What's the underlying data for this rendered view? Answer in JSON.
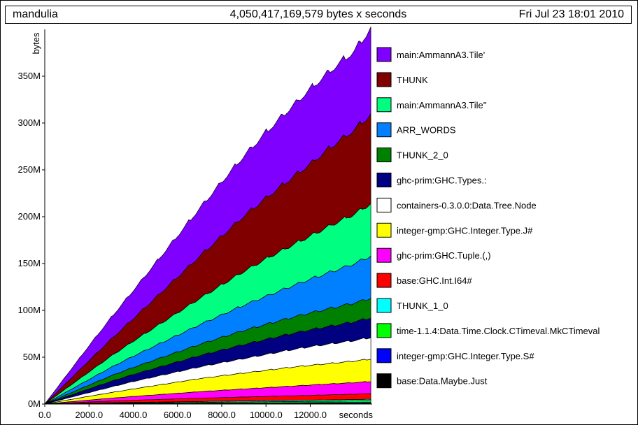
{
  "header": {
    "job": "mandulia",
    "total": "4,050,417,169,579 bytes x seconds",
    "date": "Fri Jul 23 18:01 2010"
  },
  "chart_data": {
    "type": "area",
    "stacked": true,
    "xlabel": "seconds",
    "ylabel": "bytes",
    "xlim": [
      0,
      14800
    ],
    "ylim": [
      0,
      400000000
    ],
    "x_ticks": [
      0,
      2000,
      4000,
      6000,
      8000,
      10000,
      12000
    ],
    "x_tick_labels": [
      "0.0",
      "2000.0",
      "4000.0",
      "6000.0",
      "8000.0",
      "10000.0",
      "12000.0"
    ],
    "y_ticks": [
      0,
      50000000,
      100000000,
      150000000,
      200000000,
      250000000,
      300000000,
      350000000
    ],
    "y_tick_labels": [
      "0M",
      "50M",
      "100M",
      "150M",
      "200M",
      "250M",
      "300M",
      "350M"
    ],
    "legend_position": "right",
    "x": [
      0,
      1000,
      2000,
      3000,
      4000,
      5000,
      6000,
      7000,
      8000,
      9000,
      10000,
      11000,
      12000,
      13000,
      14000,
      14740
    ],
    "series": [
      {
        "name": "base:Data.Maybe.Just",
        "color": "#000000",
        "values": [
          0,
          100000,
          200000,
          300000,
          400000,
          450000,
          500000,
          550000,
          600000,
          650000,
          700000,
          750000,
          800000,
          850000,
          900000,
          950000
        ]
      },
      {
        "name": "integer-gmp:GHC.Integer.Type.S#",
        "color": "#0000ff",
        "values": [
          0,
          80000,
          160000,
          240000,
          300000,
          350000,
          400000,
          450000,
          500000,
          550000,
          600000,
          650000,
          700000,
          750000,
          800000,
          850000
        ]
      },
      {
        "name": "time-1.1.4:Data.Time.Clock.CTimeval.MkCTimeval",
        "color": "#00ff00",
        "values": [
          0,
          150000,
          300000,
          450000,
          550000,
          650000,
          750000,
          850000,
          950000,
          1050000,
          1150000,
          1250000,
          1350000,
          1450000,
          1550000,
          1650000
        ]
      },
      {
        "name": "THUNK_1_0",
        "color": "#00ffff",
        "values": [
          0,
          150000,
          300000,
          450000,
          550000,
          650000,
          750000,
          850000,
          950000,
          1050000,
          1150000,
          1250000,
          1350000,
          1450000,
          1550000,
          1650000
        ]
      },
      {
        "name": "base:GHC.Int.I64#",
        "color": "#ff0000",
        "values": [
          0,
          700000,
          1300000,
          1800000,
          2300000,
          2700000,
          3100000,
          3500000,
          3900000,
          4200000,
          4500000,
          4800000,
          5100000,
          5400000,
          5700000,
          6000000
        ]
      },
      {
        "name": "ghc-prim:GHC.Tuple.(,)",
        "color": "#ff00ff",
        "values": [
          0,
          1000000,
          2000000,
          3000000,
          4000000,
          5000000,
          6000000,
          7000000,
          7800000,
          8600000,
          9400000,
          10200000,
          11000000,
          11700000,
          12400000,
          13000000
        ]
      },
      {
        "name": "integer-gmp:GHC.Integer.Type.J#",
        "color": "#ffff00",
        "values": [
          0,
          2000000,
          4000000,
          6000000,
          8000000,
          10000000,
          12000000,
          14000000,
          15500000,
          17000000,
          18500000,
          20000000,
          21000000,
          22000000,
          23000000,
          24000000
        ]
      },
      {
        "name": "containers-0.3.0.0:Data.Tree.Node",
        "color": "#ffffff",
        "values": [
          0,
          2000000,
          4000000,
          6000000,
          8000000,
          9500000,
          11000000,
          12500000,
          14000000,
          15500000,
          17000000,
          18500000,
          20000000,
          21000000,
          22000000,
          23000000
        ]
      },
      {
        "name": "ghc-prim:GHC.Types.:",
        "color": "#000080",
        "values": [
          0,
          2000000,
          4000000,
          6000000,
          7500000,
          9000000,
          10500000,
          12000000,
          13500000,
          15000000,
          16000000,
          17000000,
          18000000,
          19000000,
          20000000,
          21000000
        ]
      },
      {
        "name": "THUNK_2_0",
        "color": "#008000",
        "values": [
          0,
          2000000,
          4000000,
          6000000,
          7500000,
          9000000,
          10500000,
          12000000,
          13500000,
          15000000,
          16000000,
          17000000,
          18000000,
          19000000,
          20000000,
          21000000
        ]
      },
      {
        "name": "ARR_WORDS",
        "color": "#0080ff",
        "values": [
          0,
          3000000,
          6000000,
          9000000,
          12000000,
          15000000,
          18000000,
          21000000,
          24000000,
          27000000,
          30000000,
          33000000,
          36000000,
          39000000,
          42000000,
          45000000
        ]
      },
      {
        "name": "main:AmmannA3.Tile''",
        "color": "#00ff80",
        "values": [
          0,
          4000000,
          8000000,
          12000000,
          16000000,
          20000000,
          24000000,
          28000000,
          32000000,
          36000000,
          40000000,
          43000000,
          46000000,
          50000000,
          53000000,
          56000000
        ]
      },
      {
        "name": "THUNK",
        "color": "#800000",
        "values": [
          0,
          6000000,
          12000000,
          18000000,
          24000000,
          31000000,
          38000000,
          45000000,
          52000000,
          59000000,
          65000000,
          71000000,
          77000000,
          84000000,
          90000000,
          95000000
        ]
      },
      {
        "name": "main:AmmannA3.Tile'",
        "color": "#8000ff",
        "values": [
          0,
          8000000,
          16000000,
          23000000,
          30000000,
          37000000,
          44000000,
          51000000,
          58000000,
          64000000,
          70000000,
          75000000,
          80000000,
          82000000,
          84000000,
          92000000
        ]
      }
    ]
  }
}
